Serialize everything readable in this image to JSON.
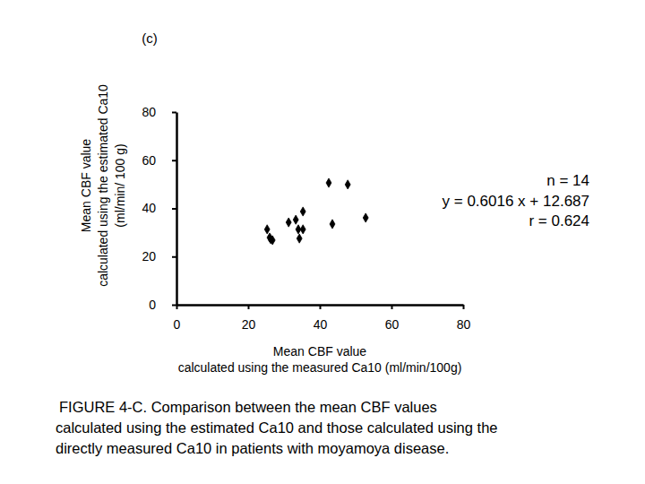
{
  "chart_data": {
    "type": "scatter",
    "title": "(c)",
    "x_label": [
      "Mean CBF value",
      "calculated using the  measured Ca10 (ml/min/100g)"
    ],
    "y_label": [
      "Mean CBF value",
      "calculated using the estimated Ca10",
      "(ml/min/ 100 g)"
    ],
    "annotations": [
      "n = 14",
      "y = 0.6016 x + 12.687",
      "r = 0.624"
    ],
    "caption": [
      "FIGURE 4-C. Comparison between the mean CBF values",
      "calculated using the estimated Ca10 and those calculated using the",
      "directly measured Ca10 in patients with moyamoya disease."
    ],
    "x": [
      25.3,
      26.0,
      26.8,
      26.3,
      31.3,
      33.3,
      35.3,
      34.0,
      35.3,
      34.3,
      42.5,
      47.8,
      43.5,
      52.8
    ],
    "values": [
      31.3,
      27.9,
      26.8,
      27.2,
      34.2,
      35.3,
      38.7,
      31.3,
      31.3,
      27.5,
      50.6,
      49.9,
      33.5,
      36.1
    ],
    "color": "#000000",
    "marker": "diamond",
    "xlim": [
      0,
      80
    ],
    "ylim": [
      0,
      80
    ],
    "xticks": [
      0,
      20,
      40,
      60,
      80
    ],
    "yticks": [
      0,
      20,
      40,
      60,
      80
    ],
    "grid": false
  }
}
